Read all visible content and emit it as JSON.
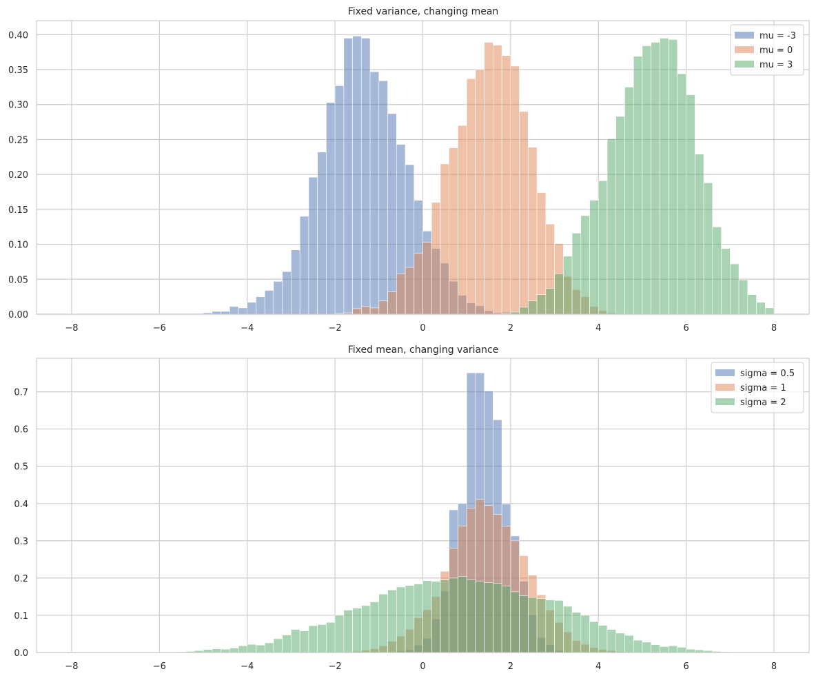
{
  "chart_data": [
    {
      "type": "bar",
      "title": "Fixed variance, changing mean",
      "xlabel": "",
      "ylabel": "",
      "bin_range": [
        -8,
        8
      ],
      "bin_width": 0.2,
      "xlim": [
        -8.8,
        8.8
      ],
      "ylim": [
        0,
        0.42
      ],
      "xticks": [
        -8,
        -6,
        -4,
        -2,
        0,
        2,
        4,
        6,
        8
      ],
      "xtick_labels": [
        "−8",
        "−6",
        "−4",
        "−2",
        "0",
        "2",
        "4",
        "6",
        "8"
      ],
      "yticks": [
        0,
        0.05,
        0.1,
        0.15,
        0.2,
        0.25,
        0.3,
        0.35,
        0.4
      ],
      "ytick_labels": [
        "0.00",
        "0.05",
        "0.10",
        "0.15",
        "0.20",
        "0.25",
        "0.30",
        "0.35",
        "0.40"
      ],
      "grid": true,
      "legend_position": "top-right",
      "series": [
        {
          "name": "mu = -3",
          "color": "#4c72b0",
          "values": [
            0,
            0,
            0,
            0,
            0,
            0,
            0,
            0,
            0,
            0,
            0,
            0,
            0,
            0,
            0.001,
            0.002,
            0.004,
            0.004,
            0.011,
            0.009,
            0.017,
            0.025,
            0.034,
            0.047,
            0.061,
            0.092,
            0.14,
            0.196,
            0.232,
            0.303,
            0.327,
            0.395,
            0.398,
            0.395,
            0.347,
            0.334,
            0.287,
            0.243,
            0.214,
            0.163,
            0.119,
            0.094,
            0.073,
            0.047,
            0.027,
            0.016,
            0.012,
            0.005,
            0.002,
            0.003,
            0.001,
            0,
            0,
            0,
            0,
            0,
            0,
            0,
            0,
            0,
            0,
            0,
            0,
            0,
            0,
            0,
            0,
            0,
            0,
            0,
            0,
            0,
            0,
            0,
            0,
            0,
            0,
            0,
            0,
            0
          ]
        },
        {
          "name": "mu = 0",
          "color": "#dd8452",
          "values": [
            0,
            0,
            0,
            0,
            0,
            0,
            0,
            0,
            0,
            0,
            0,
            0,
            0,
            0,
            0,
            0,
            0,
            0,
            0,
            0,
            0,
            0,
            0,
            0,
            0,
            0,
            0,
            0,
            0,
            0,
            0.001,
            0.002,
            0.008,
            0.011,
            0.009,
            0.019,
            0.032,
            0.058,
            0.067,
            0.087,
            0.103,
            0.16,
            0.215,
            0.238,
            0.27,
            0.337,
            0.35,
            0.389,
            0.385,
            0.37,
            0.355,
            0.29,
            0.239,
            0.174,
            0.129,
            0.101,
            0.054,
            0.035,
            0.025,
            0.011,
            0.005,
            0.002,
            0.001,
            0,
            0,
            0,
            0,
            0,
            0,
            0,
            0,
            0,
            0,
            0,
            0,
            0,
            0,
            0,
            0,
            0
          ]
        },
        {
          "name": "mu = 3",
          "color": "#55a868",
          "values": [
            0,
            0,
            0,
            0,
            0,
            0,
            0,
            0,
            0,
            0,
            0,
            0,
            0,
            0,
            0,
            0,
            0,
            0,
            0,
            0,
            0,
            0,
            0,
            0,
            0,
            0,
            0,
            0,
            0,
            0,
            0,
            0,
            0,
            0,
            0,
            0,
            0,
            0,
            0,
            0,
            0,
            0,
            0,
            0,
            0,
            0,
            0,
            0,
            0,
            0.001,
            0.003,
            0.01,
            0.019,
            0.028,
            0.037,
            0.058,
            0.083,
            0.116,
            0.141,
            0.163,
            0.191,
            0.251,
            0.283,
            0.325,
            0.369,
            0.384,
            0.389,
            0.395,
            0.393,
            0.344,
            0.314,
            0.229,
            0.188,
            0.125,
            0.094,
            0.072,
            0.049,
            0.028,
            0.017,
            0.009
          ]
        }
      ]
    },
    {
      "type": "bar",
      "title": "Fixed mean, changing variance",
      "xlabel": "",
      "ylabel": "",
      "bin_range": [
        -8,
        8
      ],
      "bin_width": 0.2,
      "xlim": [
        -8.8,
        8.8
      ],
      "ylim": [
        0,
        0.79
      ],
      "xticks": [
        -8,
        -6,
        -4,
        -2,
        0,
        2,
        4,
        6,
        8
      ],
      "xtick_labels": [
        "−8",
        "−6",
        "−4",
        "−2",
        "0",
        "2",
        "4",
        "6",
        "8"
      ],
      "yticks": [
        0,
        0.1,
        0.2,
        0.3,
        0.4,
        0.5,
        0.6,
        0.7
      ],
      "ytick_labels": [
        "0.0",
        "0.1",
        "0.2",
        "0.3",
        "0.4",
        "0.5",
        "0.6",
        "0.7"
      ],
      "grid": true,
      "legend_position": "top-right",
      "series": [
        {
          "name": "sigma = 0.5",
          "color": "#4c72b0",
          "values": [
            0,
            0,
            0,
            0,
            0,
            0,
            0,
            0,
            0,
            0,
            0,
            0,
            0,
            0,
            0,
            0,
            0,
            0,
            0,
            0,
            0,
            0,
            0,
            0,
            0,
            0,
            0,
            0,
            0,
            0,
            0,
            0,
            0,
            0,
            0,
            0,
            0.001,
            0.004,
            0.007,
            0.02,
            0.038,
            0.09,
            0.165,
            0.383,
            0.4,
            0.751,
            0.751,
            0.702,
            0.625,
            0.399,
            0.313,
            0.191,
            0.101,
            0.04,
            0.021,
            0.005,
            0.002,
            0.001,
            0,
            0,
            0,
            0,
            0,
            0,
            0,
            0,
            0,
            0,
            0,
            0,
            0,
            0,
            0,
            0,
            0,
            0,
            0,
            0,
            0,
            0
          ]
        },
        {
          "name": "sigma = 1",
          "color": "#dd8452",
          "values": [
            0,
            0,
            0,
            0,
            0,
            0,
            0,
            0,
            0,
            0,
            0,
            0,
            0,
            0,
            0,
            0,
            0,
            0,
            0,
            0,
            0,
            0,
            0,
            0,
            0,
            0,
            0,
            0,
            0,
            0,
            0,
            0.001,
            0.003,
            0.006,
            0.01,
            0.018,
            0.03,
            0.044,
            0.062,
            0.093,
            0.115,
            0.15,
            0.218,
            0.28,
            0.34,
            0.388,
            0.411,
            0.395,
            0.371,
            0.339,
            0.3,
            0.26,
            0.208,
            0.155,
            0.114,
            0.081,
            0.055,
            0.032,
            0.022,
            0.013,
            0.008,
            0.005,
            0.002,
            0.001,
            0,
            0,
            0,
            0,
            0,
            0,
            0,
            0,
            0,
            0,
            0,
            0,
            0,
            0,
            0,
            0
          ]
        },
        {
          "name": "sigma = 2",
          "color": "#55a868",
          "values": [
            0,
            0,
            0,
            0,
            0,
            0,
            0,
            0,
            0,
            0,
            0,
            0.001,
            0.002,
            0.003,
            0.005,
            0.008,
            0.01,
            0.009,
            0.012,
            0.018,
            0.022,
            0.02,
            0.026,
            0.037,
            0.047,
            0.062,
            0.058,
            0.072,
            0.075,
            0.081,
            0.1,
            0.114,
            0.119,
            0.126,
            0.136,
            0.157,
            0.168,
            0.176,
            0.18,
            0.184,
            0.193,
            0.191,
            0.195,
            0.2,
            0.204,
            0.196,
            0.192,
            0.188,
            0.186,
            0.179,
            0.163,
            0.153,
            0.148,
            0.145,
            0.141,
            0.14,
            0.124,
            0.108,
            0.1,
            0.083,
            0.073,
            0.062,
            0.052,
            0.046,
            0.033,
            0.028,
            0.021,
            0.016,
            0.018,
            0.014,
            0.009,
            0.007,
            0.005,
            0.003,
            0.002,
            0.001,
            0.001,
            0,
            0,
            0
          ]
        }
      ]
    }
  ]
}
